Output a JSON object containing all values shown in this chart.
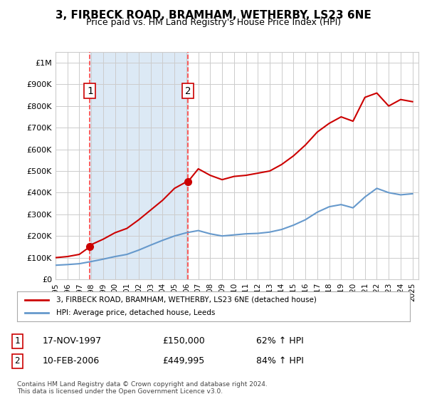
{
  "title": "3, FIRBECK ROAD, BRAMHAM, WETHERBY, LS23 6NE",
  "subtitle": "Price paid vs. HM Land Registry's House Price Index (HPI)",
  "legend_line1": "3, FIRBECK ROAD, BRAMHAM, WETHERBY, LS23 6NE (detached house)",
  "legend_line2": "HPI: Average price, detached house, Leeds",
  "footnote": "Contains HM Land Registry data © Crown copyright and database right 2024.\nThis data is licensed under the Open Government Licence v3.0.",
  "sale1_label": "1",
  "sale1_date": "17-NOV-1997",
  "sale1_price": "£150,000",
  "sale1_hpi": "62% ↑ HPI",
  "sale1_year": 1997.88,
  "sale1_value": 150000,
  "sale2_label": "2",
  "sale2_date": "10-FEB-2006",
  "sale2_price": "£449,995",
  "sale2_hpi": "84% ↑ HPI",
  "sale2_year": 2006.12,
  "sale2_value": 449995,
  "hpi_color": "#6699cc",
  "price_color": "#cc0000",
  "marker_color": "#cc0000",
  "vline_color": "#ff4444",
  "background_shade": "#dce9f5",
  "ylim": [
    0,
    1050000
  ],
  "xlim_start": 1995,
  "xlim_end": 2025.5,
  "yticks": [
    0,
    100000,
    200000,
    300000,
    400000,
    500000,
    600000,
    700000,
    800000,
    900000,
    1000000
  ],
  "ytick_labels": [
    "£0",
    "£100K",
    "£200K",
    "£300K",
    "£400K",
    "£500K",
    "£600K",
    "£700K",
    "£800K",
    "£900K",
    "£1M"
  ],
  "xtick_years": [
    1995,
    1996,
    1997,
    1998,
    1999,
    2000,
    2001,
    2002,
    2003,
    2004,
    2005,
    2006,
    2007,
    2008,
    2009,
    2010,
    2011,
    2012,
    2013,
    2014,
    2015,
    2016,
    2017,
    2018,
    2019,
    2020,
    2021,
    2022,
    2023,
    2024,
    2025
  ],
  "hpi_years": [
    1995,
    1996,
    1997,
    1998,
    1999,
    2000,
    2001,
    2002,
    2003,
    2004,
    2005,
    2006,
    2007,
    2008,
    2009,
    2010,
    2011,
    2012,
    2013,
    2014,
    2015,
    2016,
    2017,
    2018,
    2019,
    2020,
    2021,
    2022,
    2023,
    2024,
    2025
  ],
  "hpi_values": [
    65000,
    68000,
    72000,
    82000,
    93000,
    105000,
    115000,
    135000,
    158000,
    180000,
    200000,
    215000,
    225000,
    210000,
    200000,
    205000,
    210000,
    212000,
    218000,
    230000,
    250000,
    275000,
    310000,
    335000,
    345000,
    330000,
    380000,
    420000,
    400000,
    390000,
    395000
  ],
  "price_years": [
    1995,
    1996,
    1997,
    1997.88,
    1998,
    1999,
    2000,
    2001,
    2002,
    2003,
    2004,
    2005,
    2006,
    2006.12,
    2007,
    2008,
    2009,
    2010,
    2011,
    2012,
    2013,
    2014,
    2015,
    2016,
    2017,
    2018,
    2019,
    2020,
    2021,
    2022,
    2023,
    2024,
    2025
  ],
  "price_values": [
    100000,
    105000,
    115000,
    150000,
    160000,
    185000,
    215000,
    235000,
    275000,
    320000,
    365000,
    420000,
    449995,
    449995,
    510000,
    480000,
    460000,
    475000,
    480000,
    490000,
    500000,
    530000,
    570000,
    620000,
    680000,
    720000,
    750000,
    730000,
    840000,
    860000,
    800000,
    830000,
    820000
  ]
}
